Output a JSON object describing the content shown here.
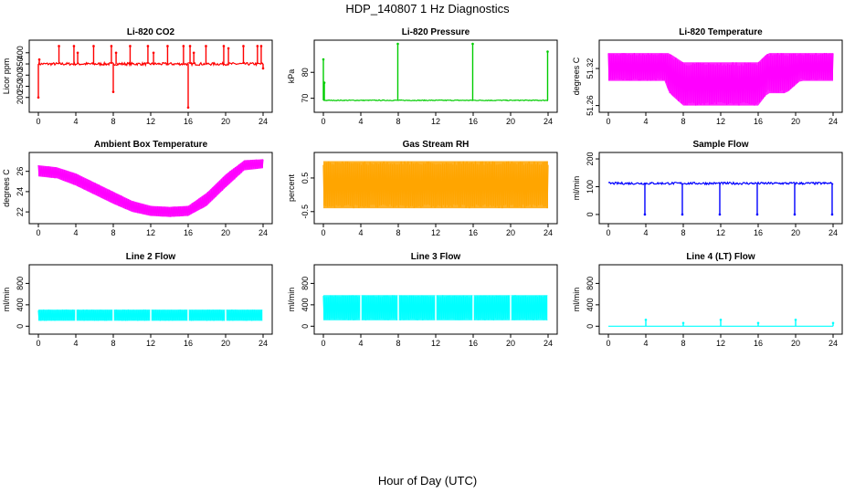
{
  "title": "HDP_140807  1 Hz Diagnostics",
  "xlabel": "Hour of Day (UTC)",
  "chart_data": [
    {
      "type": "line",
      "title": "Li-820 CO2",
      "ylabel": "Licor ppm",
      "color": "#ff0000",
      "xlim": [
        0,
        24
      ],
      "ylim": [
        150,
        440
      ],
      "xticks": [
        0,
        4,
        8,
        12,
        16,
        20,
        24
      ],
      "yticks": [
        200,
        250,
        300,
        350,
        400
      ],
      "baseline": 350,
      "noise": 6,
      "band": false,
      "spikes": [
        {
          "x": 0.0,
          "y": 200
        },
        {
          "x": 0.1,
          "y": 370
        },
        {
          "x": 2.2,
          "y": 430
        },
        {
          "x": 3.8,
          "y": 430
        },
        {
          "x": 4.2,
          "y": 400
        },
        {
          "x": 5.9,
          "y": 430
        },
        {
          "x": 7.8,
          "y": 430
        },
        {
          "x": 8.0,
          "y": 225
        },
        {
          "x": 8.3,
          "y": 400
        },
        {
          "x": 9.8,
          "y": 430
        },
        {
          "x": 11.7,
          "y": 430
        },
        {
          "x": 12.3,
          "y": 400
        },
        {
          "x": 13.8,
          "y": 430
        },
        {
          "x": 15.5,
          "y": 430
        },
        {
          "x": 16.0,
          "y": 155
        },
        {
          "x": 16.2,
          "y": 430
        },
        {
          "x": 16.6,
          "y": 400
        },
        {
          "x": 17.9,
          "y": 430
        },
        {
          "x": 19.8,
          "y": 430
        },
        {
          "x": 20.3,
          "y": 420
        },
        {
          "x": 21.9,
          "y": 430
        },
        {
          "x": 23.4,
          "y": 430
        },
        {
          "x": 23.8,
          "y": 430
        },
        {
          "x": 24.0,
          "y": 330
        }
      ]
    },
    {
      "type": "line",
      "title": "Li-820 Pressure",
      "ylabel": "kPa",
      "color": "#00cc00",
      "xlim": [
        0,
        24
      ],
      "ylim": [
        66,
        91
      ],
      "xticks": [
        0,
        4,
        8,
        12,
        16,
        20,
        24
      ],
      "yticks": [
        70,
        80
      ],
      "baseline": 69.2,
      "noise": 0.15,
      "band": false,
      "spikes": [
        {
          "x": 0.0,
          "y": 85
        },
        {
          "x": 0.1,
          "y": 76
        },
        {
          "x": 7.95,
          "y": 91
        },
        {
          "x": 15.95,
          "y": 91
        },
        {
          "x": 23.95,
          "y": 88
        }
      ]
    },
    {
      "type": "band",
      "title": "Li-820 Temperature",
      "ylabel": "degrees C",
      "color": "#ff00ff",
      "xlim": [
        0,
        24
      ],
      "ylim": [
        51.255,
        51.36
      ],
      "xticks": [
        0,
        4,
        8,
        12,
        16,
        20,
        24
      ],
      "yticks": [
        51.26,
        51.32
      ],
      "levels": [
        {
          "x": 0,
          "lo": 51.3,
          "hi": 51.345
        },
        {
          "x": 6,
          "lo": 51.3,
          "hi": 51.345
        },
        {
          "x": 6.5,
          "lo": 51.28,
          "hi": 51.345
        },
        {
          "x": 8,
          "lo": 51.26,
          "hi": 51.33
        },
        {
          "x": 16,
          "lo": 51.26,
          "hi": 51.33
        },
        {
          "x": 17,
          "lo": 51.28,
          "hi": 51.345
        },
        {
          "x": 19,
          "lo": 51.28,
          "hi": 51.345
        },
        {
          "x": 20.5,
          "lo": 51.3,
          "hi": 51.345
        },
        {
          "x": 24,
          "lo": 51.3,
          "hi": 51.345
        }
      ]
    },
    {
      "type": "band",
      "title": "Ambient Box Temperature",
      "ylabel": "degrees C",
      "color": "#ff00ff",
      "xlim": [
        0,
        24
      ],
      "ylim": [
        21.2,
        27.5
      ],
      "xticks": [
        0,
        4,
        8,
        12,
        16,
        20,
        24
      ],
      "yticks": [
        22,
        24,
        26
      ],
      "levels": [
        {
          "x": 0,
          "lo": 25.5,
          "hi": 26.6
        },
        {
          "x": 2,
          "lo": 25.3,
          "hi": 26.4
        },
        {
          "x": 4,
          "lo": 24.6,
          "hi": 25.8
        },
        {
          "x": 6,
          "lo": 23.7,
          "hi": 24.9
        },
        {
          "x": 8,
          "lo": 22.8,
          "hi": 24.0
        },
        {
          "x": 10,
          "lo": 22.0,
          "hi": 23.1
        },
        {
          "x": 12,
          "lo": 21.6,
          "hi": 22.6
        },
        {
          "x": 14,
          "lo": 21.5,
          "hi": 22.5
        },
        {
          "x": 16,
          "lo": 21.6,
          "hi": 22.6
        },
        {
          "x": 18,
          "lo": 22.6,
          "hi": 23.9
        },
        {
          "x": 20,
          "lo": 24.4,
          "hi": 25.7
        },
        {
          "x": 22,
          "lo": 26.1,
          "hi": 27.1
        },
        {
          "x": 24,
          "lo": 26.3,
          "hi": 27.2
        }
      ]
    },
    {
      "type": "band",
      "title": "Gas Stream RH",
      "ylabel": "percent",
      "color": "#ffa500",
      "xlim": [
        0,
        24
      ],
      "ylim": [
        -0.75,
        1.15
      ],
      "xticks": [
        0,
        4,
        8,
        12,
        16,
        20,
        24
      ],
      "yticks": [
        -0.5,
        0.5
      ],
      "levels": [
        {
          "x": 0,
          "lo": -0.4,
          "hi": 1.0
        },
        {
          "x": 24,
          "lo": -0.4,
          "hi": 1.0
        }
      ]
    },
    {
      "type": "line",
      "title": "Sample Flow",
      "ylabel": "ml/min",
      "color": "#0000ff",
      "xlim": [
        0,
        24
      ],
      "ylim": [
        -20,
        210
      ],
      "xticks": [
        0,
        4,
        8,
        12,
        16,
        20,
        24
      ],
      "yticks": [
        0,
        100,
        200
      ],
      "baseline": 112,
      "noise": 4,
      "band": false,
      "spikes": [
        {
          "x": 3.9,
          "y": 0
        },
        {
          "x": 7.9,
          "y": 0
        },
        {
          "x": 11.9,
          "y": 0
        },
        {
          "x": 15.9,
          "y": 0
        },
        {
          "x": 19.9,
          "y": 0
        },
        {
          "x": 23.9,
          "y": 0
        }
      ]
    },
    {
      "type": "band",
      "title": "Line 2 Flow",
      "ylabel": "ml/min",
      "color": "#00ffff",
      "xlim": [
        0,
        24
      ],
      "ylim": [
        -80,
        1080
      ],
      "xticks": [
        0,
        4,
        8,
        12,
        16,
        20,
        24
      ],
      "yticks": [
        0,
        400,
        800
      ],
      "levels": [
        {
          "x": 0,
          "lo": 100,
          "hi": 310
        },
        {
          "x": 24,
          "lo": 100,
          "hi": 310
        }
      ],
      "gaps": [
        4,
        8,
        12,
        16,
        20,
        24
      ]
    },
    {
      "type": "band",
      "title": "Line 3 Flow",
      "ylabel": "ml/min",
      "color": "#00ffff",
      "xlim": [
        0,
        24
      ],
      "ylim": [
        -80,
        1080
      ],
      "xticks": [
        0,
        4,
        8,
        12,
        16,
        20,
        24
      ],
      "yticks": [
        0,
        400,
        800
      ],
      "levels": [
        {
          "x": 0,
          "lo": 110,
          "hi": 580
        },
        {
          "x": 24,
          "lo": 110,
          "hi": 580
        }
      ],
      "gaps": [
        4,
        8,
        12,
        16,
        20,
        24
      ]
    },
    {
      "type": "line",
      "title": "Line 4 (LT) Flow",
      "ylabel": "ml/min",
      "color": "#00ffff",
      "xlim": [
        0,
        24
      ],
      "ylim": [
        -80,
        1080
      ],
      "xticks": [
        0,
        4,
        8,
        12,
        16,
        20,
        24
      ],
      "yticks": [
        0,
        400,
        800
      ],
      "baseline": 0,
      "noise": 0,
      "band": false,
      "spikes": [
        {
          "x": 4.0,
          "y": 120
        },
        {
          "x": 8.0,
          "y": 60
        },
        {
          "x": 12.0,
          "y": 120
        },
        {
          "x": 16.0,
          "y": 60
        },
        {
          "x": 20.0,
          "y": 120
        },
        {
          "x": 24.0,
          "y": 60
        }
      ]
    }
  ]
}
